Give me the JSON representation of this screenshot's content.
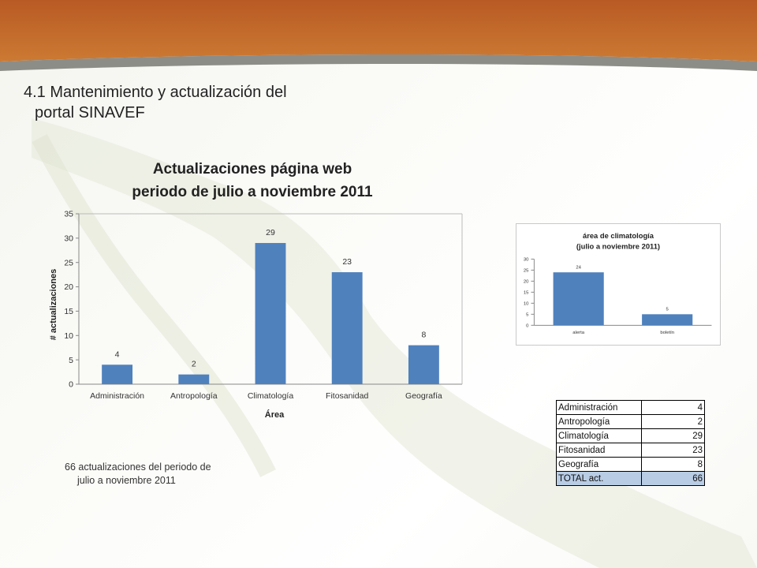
{
  "slide": {
    "title_line1": "4.1 Mantenimiento y actualización del",
    "title_line2": "portal SINAVEF",
    "note_line1": "66 actualizaciones del periodo de",
    "note_line2": "julio a noviembre 2011"
  },
  "colors": {
    "banner_top": "#c0632a",
    "banner_bottom": "#c8742f",
    "banner_stripe": "#8a8a86",
    "bar": "#4f81bd",
    "bottom_bar": "#86bb48",
    "total_row": "#b8cce4"
  },
  "chart_data": [
    {
      "type": "bar",
      "title_line1": "Actualizaciones página web",
      "title_line2": "periodo de julio a noviembre 2011",
      "xlabel": "Área",
      "ylabel": "# actualizaciones",
      "categories": [
        "Administración",
        "Antropología",
        "Climatología",
        "Fitosanidad",
        "Geografía"
      ],
      "values": [
        4,
        2,
        29,
        23,
        8
      ],
      "ylim": [
        0,
        35
      ],
      "yticks": [
        0,
        5,
        10,
        15,
        20,
        25,
        30,
        35
      ],
      "grid": false,
      "data_labels": true
    },
    {
      "type": "bar",
      "title_line1": "área de climatología",
      "title_line2": "(julio a noviembre 2011)",
      "categories": [
        "alerta",
        "boletín"
      ],
      "values": [
        24,
        5
      ],
      "ylim": [
        0,
        30
      ],
      "yticks": [
        0,
        5,
        10,
        15,
        20,
        25,
        30
      ],
      "grid": false,
      "data_labels": true
    }
  ],
  "table": {
    "rows": [
      {
        "label": "Administración",
        "value": "4"
      },
      {
        "label": "Antropología",
        "value": "2"
      },
      {
        "label": "Climatología",
        "value": "29"
      },
      {
        "label": "Fitosanidad",
        "value": "23"
      },
      {
        "label": "Geografía",
        "value": "8"
      }
    ],
    "total_label": "TOTAL act.",
    "total_value": "66"
  }
}
